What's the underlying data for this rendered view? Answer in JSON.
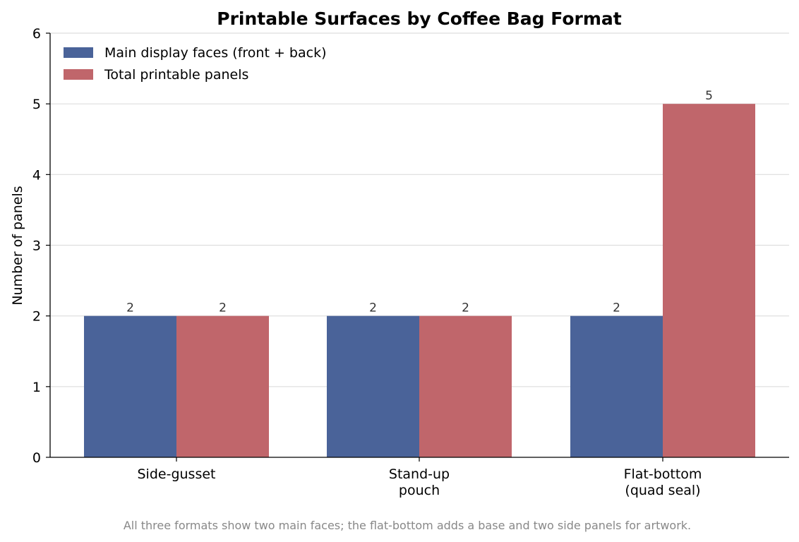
{
  "chart_data": {
    "type": "bar",
    "title": "Printable Surfaces by Coffee Bag Format",
    "xlabel": "",
    "ylabel": "Number of panels",
    "ylim": [
      0,
      6
    ],
    "yticks": [
      "0",
      "1",
      "2",
      "3",
      "4",
      "5",
      "6"
    ],
    "categories": [
      [
        "Side-gusset"
      ],
      [
        "Stand-up",
        "pouch"
      ],
      [
        "Flat-bottom",
        "(quad seal)"
      ]
    ],
    "series": [
      {
        "name": "Main display faces (front + back)",
        "color": "#4a6399",
        "values": [
          2,
          2,
          2
        ]
      },
      {
        "name": "Total printable panels",
        "color": "#c0666b",
        "values": [
          2,
          2,
          5
        ]
      }
    ],
    "grid": "horizontal",
    "legend_position": "top-left",
    "caption": "All three formats show two main faces; the flat-bottom adds a base and two side panels for artwork."
  }
}
